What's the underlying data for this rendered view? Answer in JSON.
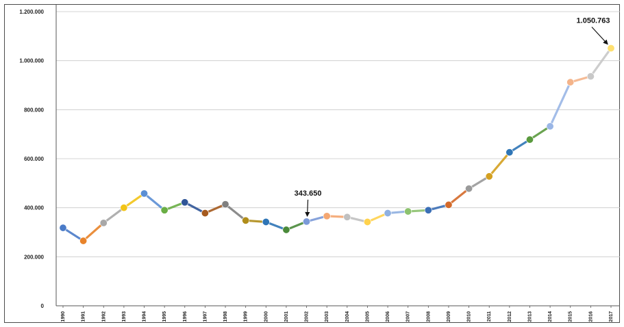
{
  "chart_data": {
    "type": "line",
    "title": "",
    "xlabel": "",
    "ylabel": "",
    "ylim": [
      0,
      1200000
    ],
    "grid": true,
    "y_ticks": [
      {
        "value": 0,
        "label": "0"
      },
      {
        "value": 200000,
        "label": "200.000"
      },
      {
        "value": 400000,
        "label": "400.000"
      },
      {
        "value": 600000,
        "label": "600.000"
      },
      {
        "value": 800000,
        "label": "800.000"
      },
      {
        "value": 1000000,
        "label": "1.000.000"
      },
      {
        "value": 1200000,
        "label": "1.200.000"
      }
    ],
    "categories": [
      "1990",
      "1991",
      "1992",
      "1993",
      "1994",
      "1995",
      "1996",
      "1997",
      "1998",
      "1999",
      "2000",
      "2001",
      "2002",
      "2003",
      "2004",
      "2005",
      "2006",
      "2007",
      "2008",
      "2009",
      "2010",
      "2011",
      "2012",
      "2013",
      "2014",
      "2015",
      "2016",
      "2017"
    ],
    "values": [
      318000,
      265000,
      338000,
      400000,
      458000,
      390000,
      422000,
      378000,
      414000,
      348000,
      342000,
      310000,
      343650,
      366000,
      362000,
      342000,
      378000,
      385000,
      390000,
      412000,
      478000,
      528000,
      626000,
      678000,
      732000,
      912000,
      936000,
      1050763
    ],
    "point_colors": [
      "#4a7bc8",
      "#e8832a",
      "#a8a8a8",
      "#f2c418",
      "#5b8fd4",
      "#6aae45",
      "#2f5597",
      "#a55a1f",
      "#808080",
      "#b08d1a",
      "#2e75b6",
      "#4a8a3a",
      "#7b9ad8",
      "#f4a772",
      "#c0c0c0",
      "#ffd24d",
      "#8fb0e0",
      "#8cc26e",
      "#3b6fb6",
      "#d46a2a",
      "#9a9a9a",
      "#d4a020",
      "#2e75b6",
      "#5a9a3e",
      "#9ab6e6",
      "#f4b48a",
      "#c8c8c8",
      "#ffe070"
    ],
    "annotations": [
      {
        "x": "2002",
        "label": "343.650"
      },
      {
        "x": "2017",
        "label": "1.050.763"
      }
    ]
  }
}
